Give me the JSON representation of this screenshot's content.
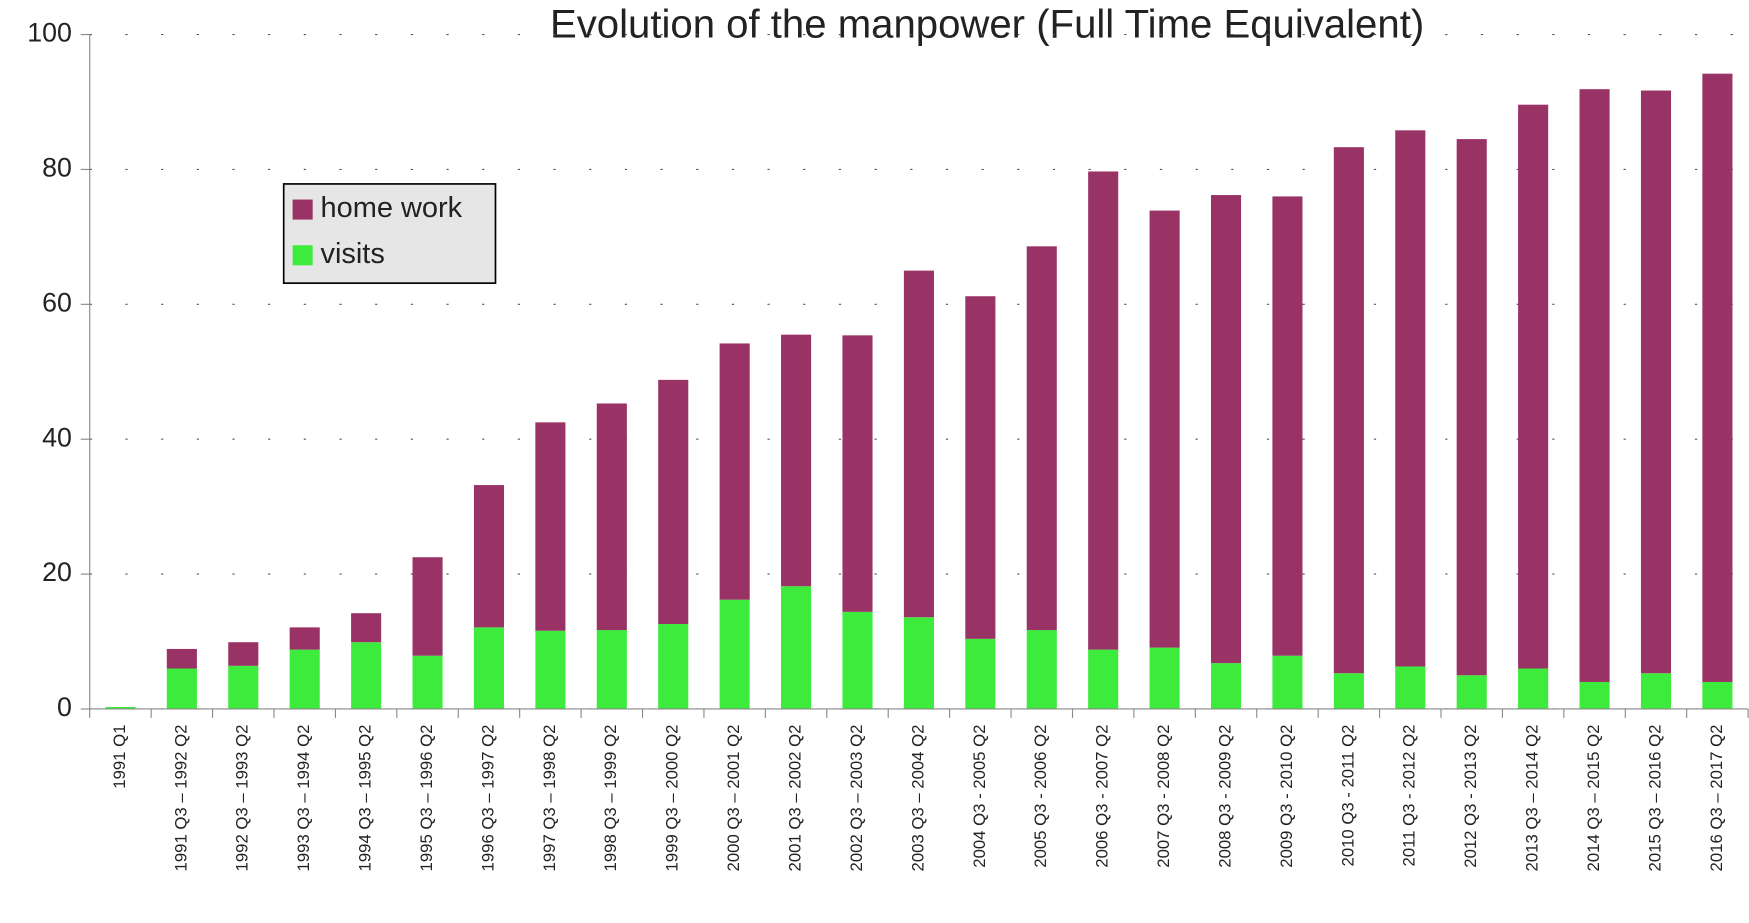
{
  "chart_data": {
    "type": "stacked_bar",
    "title": "Evolution of the manpower (Full Time Equivalent)",
    "categories": [
      "1991 Q1",
      "1991 Q3 – 1992 Q2",
      "1992 Q3 – 1993 Q2",
      "1993 Q3 – 1994 Q2",
      "1994 Q3 – 1995 Q2",
      "1995 Q3 – 1996 Q2",
      "1996 Q3 – 1997 Q2",
      "1997 Q3 – 1998 Q2",
      "1998 Q3 – 1999 Q2",
      "1999 Q3 – 2000 Q2",
      "2000 Q3 – 2001 Q2",
      "2001 Q3 – 2002 Q2",
      "2002 Q3 – 2003 Q2",
      "2003 Q3 – 2004 Q2",
      "2004 Q3 - 2005 Q2",
      "2005 Q3 - 2006 Q2",
      "2006 Q3 - 2007 Q2",
      "2007 Q3 - 2008 Q2",
      "2008 Q3 - 2009 Q2",
      "2009 Q3 - 2010 Q2",
      "2010 Q3 - 2011 Q2",
      "2011 Q3 - 2012 Q2",
      "2012 Q3 - 2013 Q2",
      "2013 Q3 – 2014 Q2",
      "2014 Q3 – 2015 Q2",
      "2015 Q3 – 2016 Q2",
      "2016 Q3 – 2017 Q2"
    ],
    "series": [
      {
        "name": "home work",
        "color": "#993366",
        "values": [
          0,
          2.9,
          3.5,
          3.3,
          4.3,
          14.6,
          21.1,
          30.9,
          33.6,
          36.2,
          38.0,
          37.3,
          41.0,
          51.4,
          50.8,
          56.9,
          70.9,
          64.8,
          69.4,
          68.1,
          78.0,
          79.5,
          79.5,
          83.6,
          87.9,
          86.4,
          90.2
        ]
      },
      {
        "name": "visits",
        "color": "#3deb3d",
        "values": [
          0.3,
          6.0,
          6.4,
          8.8,
          9.9,
          7.9,
          12.1,
          11.6,
          11.7,
          12.6,
          16.2,
          18.2,
          14.4,
          13.6,
          10.4,
          11.7,
          8.8,
          9.1,
          6.8,
          7.9,
          5.3,
          6.3,
          5.0,
          6.0,
          4.0,
          5.3,
          4.0
        ]
      }
    ],
    "ylim": [
      0,
      100
    ],
    "yticks": [
      0,
      20,
      40,
      60,
      80,
      100
    ],
    "grid": true,
    "legend": "upper left"
  }
}
